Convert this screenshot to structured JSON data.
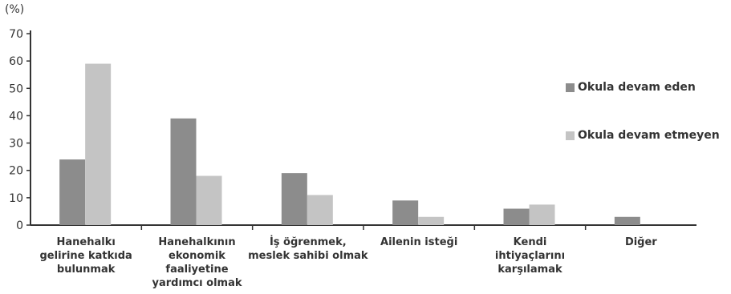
{
  "chart_data": {
    "type": "bar",
    "unit_label": "(%)",
    "categories": [
      "Hanehalkı\ngelirine katkıda\nbulunmak",
      "Hanehalkının\nekonomik\nfaaliyetine\nyardımcı olmak",
      "İş öğrenmek,\nmeslek sahibi olmak",
      "Ailenin isteği",
      "Kendi\nihtiyaçlarını\nkarşılamak",
      "Diğer"
    ],
    "series": [
      {
        "name": "Okula devam eden",
        "color": "#8c8c8c",
        "values": [
          24,
          39,
          19,
          9,
          6,
          3
        ]
      },
      {
        "name": "Okula devam etmeyen",
        "color": "#c4c4c4",
        "values": [
          59,
          18,
          11,
          3,
          7.5,
          0
        ]
      }
    ],
    "ylim": [
      0,
      70
    ],
    "yticks": [
      0,
      10,
      20,
      30,
      40,
      50,
      60,
      70
    ],
    "grid": false,
    "legend_position": "right"
  }
}
